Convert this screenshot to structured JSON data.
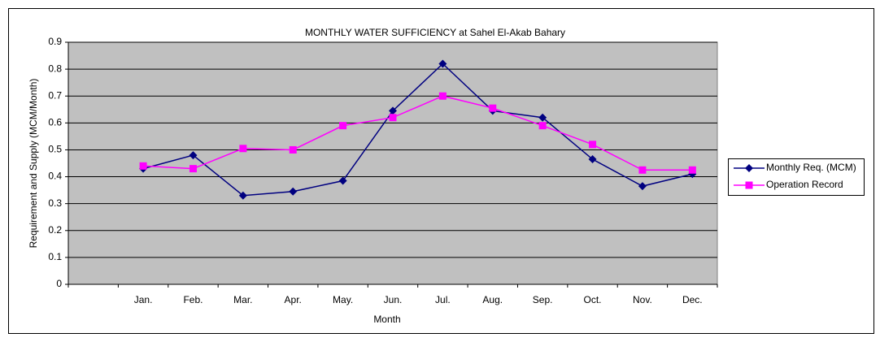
{
  "chart_data": {
    "type": "line",
    "title": "MONTHLY WATER SUFFICIENCY at  Sahel El-Akab Bahary",
    "x_label": "Month",
    "y_label": "Requirement and Supply (MCM/Month)",
    "categories": [
      null,
      "Jan.",
      "Feb.",
      "Mar.",
      "Apr.",
      "May.",
      "Jun.",
      "Jul.",
      "Aug.",
      "Sep.",
      "Oct.",
      "Nov.",
      "Dec."
    ],
    "series": [
      {
        "name": "Monthly Req.  (MCM)",
        "color": "#000080",
        "marker": "diamond",
        "values": [
          null,
          0.43,
          0.48,
          0.33,
          0.345,
          0.385,
          0.645,
          0.82,
          0.645,
          0.62,
          0.465,
          0.365,
          0.41
        ]
      },
      {
        "name": "Operation Record",
        "color": "#ff00ff",
        "marker": "square",
        "values": [
          null,
          0.44,
          0.43,
          0.505,
          0.5,
          0.59,
          0.62,
          0.7,
          0.655,
          0.59,
          0.52,
          0.425,
          0.425
        ]
      }
    ],
    "ylim": [
      0,
      0.9
    ],
    "yticks": [
      0,
      0.1,
      0.2,
      0.3,
      0.4,
      0.5,
      0.6,
      0.7,
      0.8,
      0.9
    ],
    "grid": true,
    "plot_background": "#c0c0c0",
    "legend": "right"
  }
}
